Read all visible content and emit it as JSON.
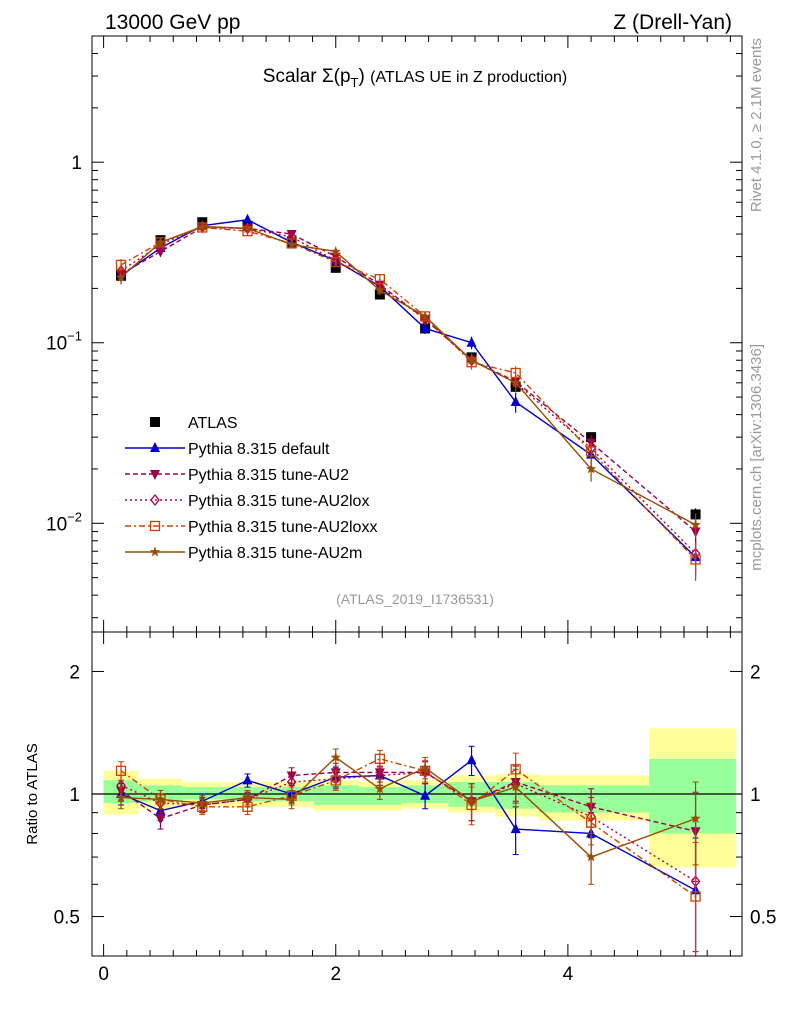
{
  "header": {
    "energy_label": "13000 GeV pp",
    "process_label": "Z (Drell-Yan)"
  },
  "side_labels": {
    "rivet": "Rivet 4.1.0, ≥ 2.1M events",
    "mcplots": "mcplots.cern.ch [arXiv:1306.3436]"
  },
  "colors": {
    "ATLAS": "#000000",
    "default": "#0000cc",
    "AU2": "#99004d",
    "AU2lox": "#b3003b",
    "AU2loxx": "#cc4400",
    "AU2m": "#994d00",
    "band_inner": "#99ff99",
    "band_outer": "#ffff99"
  },
  "chart_data": [
    {
      "type": "line",
      "panel": "main",
      "title": "Scalar Σ(p_T) (ATLAS UE in Z production)",
      "title_main": "Scalar ",
      "title_sigma": "Σ(p",
      "title_sub": "T",
      "title_close": ")",
      "title_rest": "(ATLAS UE in Z production)",
      "analysis_label": "(ATLAS_2019_I1736531)",
      "yscale": "log",
      "ylim": [
        0.0025,
        5
      ],
      "xlim": [
        -0.1,
        5.5
      ],
      "yticks": [
        {
          "value": 1,
          "base": "1",
          "exp": ""
        },
        {
          "value": 0.1,
          "base": "10",
          "exp": "−1"
        },
        {
          "value": 0.01,
          "base": "10",
          "exp": "−2"
        }
      ],
      "legend_position": "left-middle",
      "x": [
        0.15,
        0.49,
        0.85,
        1.24,
        1.62,
        2.0,
        2.38,
        2.77,
        3.17,
        3.55,
        4.2,
        5.1
      ],
      "series": [
        {
          "key": "ATLAS",
          "name": "ATLAS",
          "marker": "square",
          "values": [
            0.235,
            0.37,
            0.465,
            0.445,
            0.36,
            0.26,
            0.185,
            0.12,
            0.083,
            0.057,
            0.03,
            0.0112
          ],
          "errors": [
            0.01,
            0.012,
            0.012,
            0.012,
            0.01,
            0.008,
            0.006,
            0.004,
            0.003,
            0.003,
            0.0015,
            0.0009
          ]
        },
        {
          "key": "default",
          "name": "Pythia 8.315 default",
          "marker": "triangle-up",
          "dash": "",
          "values": [
            0.235,
            0.335,
            0.445,
            0.48,
            0.36,
            0.285,
            0.205,
            0.12,
            0.1,
            0.047,
            0.024,
            0.0065
          ],
          "errors": [
            0.02,
            0.02,
            0.02,
            0.02,
            0.018,
            0.016,
            0.012,
            0.008,
            0.008,
            0.006,
            0.003,
            0.0015
          ]
        },
        {
          "key": "AU2",
          "name": "Pythia 8.315 tune-AU2",
          "marker": "triangle-down",
          "dash": "5,3",
          "values": [
            0.24,
            0.32,
            0.435,
            0.43,
            0.4,
            0.3,
            0.21,
            0.135,
            0.08,
            0.061,
            0.028,
            0.009
          ],
          "errors": [
            0.02,
            0.02,
            0.02,
            0.02,
            0.018,
            0.016,
            0.012,
            0.008,
            0.007,
            0.006,
            0.003,
            0.0015
          ]
        },
        {
          "key": "AU2lox",
          "name": "Pythia 8.315 tune-AU2lox",
          "marker": "diamond",
          "dash": "2,3",
          "values": [
            0.25,
            0.35,
            0.44,
            0.43,
            0.385,
            0.285,
            0.205,
            0.135,
            0.08,
            0.06,
            0.026,
            0.0068
          ],
          "errors": [
            0.02,
            0.02,
            0.02,
            0.02,
            0.018,
            0.016,
            0.012,
            0.008,
            0.007,
            0.006,
            0.003,
            0.0015
          ]
        },
        {
          "key": "AU2loxx",
          "name": "Pythia 8.315 tune-AU2loxx",
          "marker": "open-square",
          "dash": "6,3,2,3",
          "values": [
            0.27,
            0.36,
            0.435,
            0.415,
            0.355,
            0.28,
            0.225,
            0.14,
            0.078,
            0.068,
            0.025,
            0.0063
          ],
          "errors": [
            0.02,
            0.02,
            0.02,
            0.02,
            0.018,
            0.016,
            0.012,
            0.008,
            0.007,
            0.006,
            0.003,
            0.0015
          ]
        },
        {
          "key": "AU2m",
          "name": "Pythia 8.315 tune-AU2m",
          "marker": "star",
          "dash": "",
          "values": [
            0.23,
            0.36,
            0.44,
            0.43,
            0.35,
            0.32,
            0.195,
            0.14,
            0.08,
            0.06,
            0.02,
            0.0098
          ],
          "errors": [
            0.02,
            0.02,
            0.02,
            0.02,
            0.018,
            0.016,
            0.012,
            0.008,
            0.007,
            0.006,
            0.003,
            0.0015
          ]
        }
      ]
    },
    {
      "type": "line",
      "panel": "ratio",
      "ylabel": "Ratio to ATLAS",
      "yscale": "log",
      "ylim": [
        0.4,
        2.5
      ],
      "xlim": [
        -0.1,
        5.5
      ],
      "yticks": [
        {
          "value": 2,
          "label": "2"
        },
        {
          "value": 1,
          "label": "1"
        },
        {
          "value": 0.5,
          "label": "0.5"
        }
      ],
      "xticks": [
        {
          "value": 0,
          "label": "0"
        },
        {
          "value": 2,
          "label": "2"
        },
        {
          "value": 4,
          "label": "4"
        }
      ],
      "bin_edges": [
        0.0,
        0.3,
        0.68,
        1.04,
        1.44,
        1.81,
        2.2,
        2.57,
        2.97,
        3.37,
        3.75,
        4.7,
        5.45
      ],
      "band_inner": [
        [
          0.95,
          1.08
        ],
        [
          0.96,
          1.05
        ],
        [
          0.97,
          1.04
        ],
        [
          0.96,
          1.04
        ],
        [
          0.96,
          1.04
        ],
        [
          0.94,
          1.05
        ],
        [
          0.94,
          1.04
        ],
        [
          0.95,
          1.05
        ],
        [
          0.93,
          1.07
        ],
        [
          0.92,
          1.07
        ],
        [
          0.9,
          1.05
        ],
        [
          0.8,
          1.22
        ]
      ],
      "band_outer": [
        [
          0.89,
          1.14
        ],
        [
          0.92,
          1.09
        ],
        [
          0.94,
          1.07
        ],
        [
          0.93,
          1.07
        ],
        [
          0.93,
          1.07
        ],
        [
          0.91,
          1.08
        ],
        [
          0.91,
          1.07
        ],
        [
          0.92,
          1.08
        ],
        [
          0.9,
          1.11
        ],
        [
          0.88,
          1.12
        ],
        [
          0.86,
          1.11
        ],
        [
          0.66,
          1.45
        ]
      ],
      "series": [
        {
          "key": "default",
          "values": [
            1.0,
            0.91,
            0.96,
            1.08,
            1.0,
            1.1,
            1.11,
            0.99,
            1.21,
            0.82,
            0.8,
            0.58
          ],
          "errors": [
            0.06,
            0.05,
            0.04,
            0.04,
            0.05,
            0.06,
            0.06,
            0.07,
            0.1,
            0.11,
            0.1,
            0.2
          ]
        },
        {
          "key": "AU2",
          "values": [
            1.02,
            0.87,
            0.94,
            0.97,
            1.11,
            1.13,
            1.13,
            1.13,
            0.96,
            1.07,
            0.93,
            0.81
          ],
          "errors": [
            0.06,
            0.05,
            0.04,
            0.04,
            0.05,
            0.06,
            0.06,
            0.07,
            0.1,
            0.11,
            0.1,
            0.2
          ]
        },
        {
          "key": "AU2lox",
          "values": [
            1.05,
            0.95,
            0.94,
            0.97,
            1.07,
            1.09,
            1.11,
            1.13,
            0.96,
            1.06,
            0.88,
            0.61
          ],
          "errors": [
            0.06,
            0.05,
            0.04,
            0.04,
            0.05,
            0.06,
            0.06,
            0.07,
            0.1,
            0.11,
            0.1,
            0.2
          ]
        },
        {
          "key": "AU2loxx",
          "values": [
            1.14,
            0.97,
            0.93,
            0.93,
            0.99,
            1.08,
            1.22,
            1.14,
            0.94,
            1.15,
            0.85,
            0.56
          ],
          "errors": [
            0.06,
            0.05,
            0.04,
            0.04,
            0.05,
            0.06,
            0.06,
            0.07,
            0.1,
            0.11,
            0.1,
            0.2
          ]
        },
        {
          "key": "AU2m",
          "values": [
            0.98,
            0.97,
            0.95,
            0.98,
            0.97,
            1.23,
            1.03,
            1.16,
            0.96,
            1.04,
            0.7,
            0.87
          ],
          "errors": [
            0.06,
            0.05,
            0.04,
            0.04,
            0.05,
            0.06,
            0.06,
            0.07,
            0.1,
            0.11,
            0.1,
            0.2
          ]
        }
      ]
    }
  ]
}
